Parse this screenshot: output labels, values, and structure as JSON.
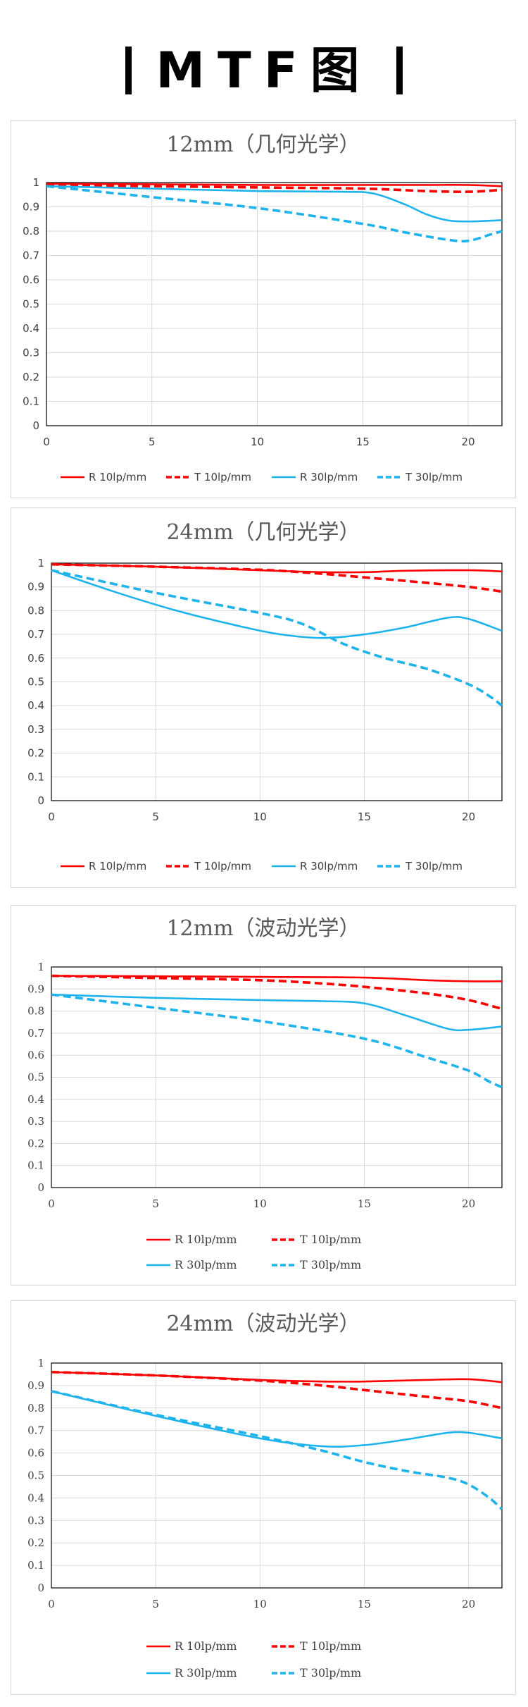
{
  "page": {
    "title": "MTF图"
  },
  "chart_data": [
    {
      "type": "line",
      "title": "12mm（几何光学）",
      "xlim": [
        0,
        21.6
      ],
      "ylim": [
        0,
        1
      ],
      "x_ticks": [
        "0",
        "5",
        "10",
        "15",
        "20"
      ],
      "y_ticks": [
        "0",
        "0.1",
        "0.2",
        "0.3",
        "0.4",
        "0.5",
        "0.6",
        "0.7",
        "0.8",
        "0.9",
        "1"
      ],
      "grid": true,
      "legend_position": "bottom",
      "series": [
        {
          "name": "R 10lp/mm",
          "color": "#ff0000",
          "dash": "solid",
          "x": [
            0,
            5,
            10,
            15,
            18,
            20,
            21.6
          ],
          "y": [
            0.995,
            0.993,
            0.99,
            0.99,
            0.99,
            0.99,
            0.985
          ]
        },
        {
          "name": "T 10lp/mm",
          "color": "#ff0000",
          "dash": "dashed",
          "x": [
            0,
            5,
            10,
            15,
            18,
            20,
            21.6
          ],
          "y": [
            0.99,
            0.985,
            0.98,
            0.975,
            0.965,
            0.962,
            0.97
          ]
        },
        {
          "name": "R 30lp/mm",
          "color": "#1fb3ec",
          "dash": "solid",
          "x": [
            0,
            5,
            10,
            14,
            15.5,
            17,
            18,
            19,
            20,
            21.6
          ],
          "y": [
            0.985,
            0.975,
            0.965,
            0.962,
            0.955,
            0.91,
            0.87,
            0.845,
            0.84,
            0.845
          ]
        },
        {
          "name": "T 30lp/mm",
          "color": "#1fb3ec",
          "dash": "dashed",
          "x": [
            0,
            5,
            10,
            15,
            17,
            19,
            20,
            21,
            21.6
          ],
          "y": [
            0.985,
            0.94,
            0.895,
            0.83,
            0.795,
            0.765,
            0.76,
            0.785,
            0.8
          ]
        }
      ]
    },
    {
      "type": "line",
      "title": "24mm（几何光学）",
      "xlim": [
        0,
        21.6
      ],
      "ylim": [
        0,
        1
      ],
      "x_ticks": [
        "0",
        "5",
        "10",
        "15",
        "20"
      ],
      "y_ticks": [
        "0",
        "0.1",
        "0.2",
        "0.3",
        "0.4",
        "0.5",
        "0.6",
        "0.7",
        "0.8",
        "0.9",
        "1"
      ],
      "grid": true,
      "legend_position": "bottom",
      "series": [
        {
          "name": "R 10lp/mm",
          "color": "#ff0000",
          "dash": "solid",
          "x": [
            0,
            5,
            10,
            13,
            15,
            17,
            20,
            21.6
          ],
          "y": [
            0.995,
            0.985,
            0.97,
            0.962,
            0.962,
            0.968,
            0.97,
            0.965
          ]
        },
        {
          "name": "T 10lp/mm",
          "color": "#ff0000",
          "dash": "dashed",
          "x": [
            0,
            5,
            10,
            13,
            15,
            17,
            20,
            21.6
          ],
          "y": [
            0.995,
            0.985,
            0.972,
            0.955,
            0.94,
            0.925,
            0.9,
            0.88
          ]
        },
        {
          "name": "R 30lp/mm",
          "color": "#1fb3ec",
          "dash": "solid",
          "x": [
            0,
            3,
            6,
            9,
            11,
            13,
            15,
            17,
            19,
            20,
            21.6
          ],
          "y": [
            0.97,
            0.88,
            0.8,
            0.735,
            0.7,
            0.685,
            0.7,
            0.73,
            0.77,
            0.765,
            0.715
          ]
        },
        {
          "name": "T 30lp/mm",
          "color": "#1fb3ec",
          "dash": "dashed",
          "x": [
            0,
            5,
            10,
            12,
            14,
            16,
            18,
            20,
            21,
            21.6
          ],
          "y": [
            0.97,
            0.875,
            0.79,
            0.745,
            0.66,
            0.6,
            0.555,
            0.49,
            0.44,
            0.4
          ]
        }
      ]
    },
    {
      "type": "line",
      "title": "12mm（波动光学）",
      "xlim": [
        0,
        21.6
      ],
      "ylim": [
        0,
        1
      ],
      "x_ticks": [
        "0",
        "5",
        "10",
        "15",
        "20"
      ],
      "y_ticks": [
        "0",
        "0.1",
        "0.2",
        "0.3",
        "0.4",
        "0.5",
        "0.6",
        "0.7",
        "0.8",
        "0.9",
        "1"
      ],
      "grid": true,
      "legend_position": "bottom",
      "series": [
        {
          "name": "R 10lp/mm",
          "color": "#ff0000",
          "dash": "solid",
          "x": [
            0,
            5,
            10,
            15,
            18,
            20,
            21.6
          ],
          "y": [
            0.96,
            0.958,
            0.955,
            0.952,
            0.94,
            0.935,
            0.935
          ]
        },
        {
          "name": "T 10lp/mm",
          "color": "#ff0000",
          "dash": "dashed",
          "x": [
            0,
            5,
            10,
            13,
            15,
            18,
            20,
            21.6
          ],
          "y": [
            0.96,
            0.95,
            0.94,
            0.925,
            0.91,
            0.88,
            0.85,
            0.81
          ]
        },
        {
          "name": "R 30lp/mm",
          "color": "#1fb3ec",
          "dash": "solid",
          "x": [
            0,
            5,
            10,
            13,
            15,
            17,
            19,
            20,
            21.6
          ],
          "y": [
            0.875,
            0.86,
            0.85,
            0.845,
            0.835,
            0.78,
            0.72,
            0.715,
            0.73
          ]
        },
        {
          "name": "T 30lp/mm",
          "color": "#1fb3ec",
          "dash": "dashed",
          "x": [
            0,
            5,
            10,
            15,
            18,
            20,
            21,
            21.6
          ],
          "y": [
            0.875,
            0.815,
            0.755,
            0.675,
            0.59,
            0.53,
            0.48,
            0.455
          ]
        }
      ]
    },
    {
      "type": "line",
      "title": "24mm（波动光学）",
      "xlim": [
        0,
        21.6
      ],
      "ylim": [
        0,
        1
      ],
      "x_ticks": [
        "0",
        "5",
        "10",
        "15",
        "20"
      ],
      "y_ticks": [
        "0",
        "0.1",
        "0.2",
        "0.3",
        "0.4",
        "0.5",
        "0.6",
        "0.7",
        "0.8",
        "0.9",
        "1"
      ],
      "grid": true,
      "legend_position": "bottom",
      "series": [
        {
          "name": "R 10lp/mm",
          "color": "#ff0000",
          "dash": "solid",
          "x": [
            0,
            5,
            10,
            13,
            15,
            18,
            20,
            21.6
          ],
          "y": [
            0.96,
            0.945,
            0.925,
            0.918,
            0.918,
            0.925,
            0.928,
            0.915
          ]
        },
        {
          "name": "T 10lp/mm",
          "color": "#ff0000",
          "dash": "dashed",
          "x": [
            0,
            5,
            10,
            13,
            15,
            18,
            20,
            21.6
          ],
          "y": [
            0.96,
            0.945,
            0.922,
            0.9,
            0.88,
            0.85,
            0.83,
            0.8
          ]
        },
        {
          "name": "R 30lp/mm",
          "color": "#1fb3ec",
          "dash": "solid",
          "x": [
            0,
            5,
            10,
            13,
            15,
            17,
            19,
            20,
            21.6
          ],
          "y": [
            0.875,
            0.765,
            0.665,
            0.63,
            0.635,
            0.66,
            0.69,
            0.69,
            0.665
          ]
        },
        {
          "name": "T 30lp/mm",
          "color": "#1fb3ec",
          "dash": "dashed",
          "x": [
            0,
            5,
            10,
            13,
            15,
            17,
            19,
            20,
            21,
            21.6
          ],
          "y": [
            0.875,
            0.77,
            0.675,
            0.61,
            0.56,
            0.52,
            0.49,
            0.46,
            0.4,
            0.35
          ]
        }
      ]
    }
  ]
}
